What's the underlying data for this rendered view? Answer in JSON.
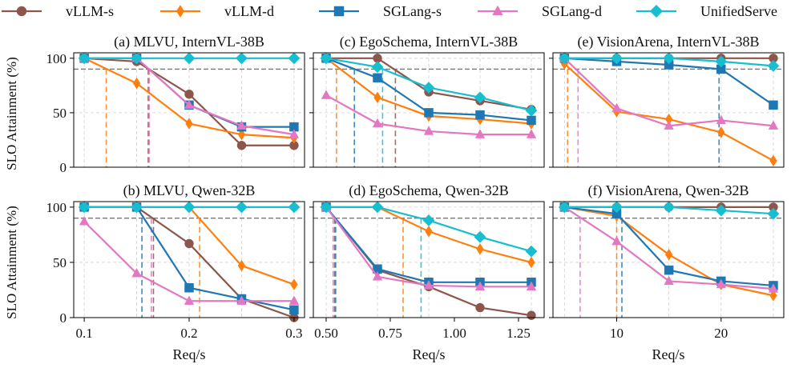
{
  "figure": {
    "ylabel": "SLO Attainment (%)",
    "xlabel": "Req/s",
    "target_line": 90
  },
  "legend": [
    {
      "name": "vLLM-s",
      "color": "#8c564b",
      "marker": "circle"
    },
    {
      "name": "vLLM-d",
      "color": "#ff7f0e",
      "marker": "diamond-thin"
    },
    {
      "name": "SGLang-s",
      "color": "#1f77b4",
      "marker": "square"
    },
    {
      "name": "SGLang-d",
      "color": "#e377c2",
      "marker": "triangle"
    },
    {
      "name": "UnifiedServe",
      "color": "#17becf",
      "marker": "diamond"
    }
  ],
  "chart_data": [
    {
      "type": "line",
      "title": "(a) MLVU, InternVL-38B",
      "xlabel": "",
      "ylabel": "SLO Attainment (%)",
      "xlim": [
        0.09,
        0.31
      ],
      "ylim": [
        0,
        105
      ],
      "xticks": [],
      "xtick_labels": [],
      "yticks": [
        0,
        50,
        100
      ],
      "x": [
        0.1,
        0.15,
        0.2,
        0.25,
        0.3
      ],
      "series": [
        {
          "name": "vLLM-s",
          "values": [
            100,
            97,
            67,
            20,
            20
          ]
        },
        {
          "name": "vLLM-d",
          "values": [
            100,
            77,
            40,
            30,
            27
          ]
        },
        {
          "name": "SGLang-s",
          "values": [
            100,
            100,
            57,
            37,
            37
          ]
        },
        {
          "name": "SGLang-d",
          "values": [
            100,
            100,
            57,
            38,
            30
          ]
        },
        {
          "name": "UnifiedServe",
          "values": [
            100,
            100,
            100,
            100,
            100
          ]
        }
      ],
      "vlines": [
        {
          "name": "vLLM-d",
          "x": 0.121
        },
        {
          "name": "vLLM-s",
          "x": 0.161
        },
        {
          "name": "SGLang-d",
          "x": 0.162
        }
      ]
    },
    {
      "type": "line",
      "title": "(c) EgoSchema, InternVL-38B",
      "xlabel": "",
      "ylabel": "",
      "xlim": [
        0.45,
        1.35
      ],
      "ylim": [
        0,
        105
      ],
      "xticks": [],
      "xtick_labels": [],
      "yticks": [
        0,
        50,
        100
      ],
      "x": [
        0.5,
        0.7,
        0.9,
        1.1,
        1.3
      ],
      "series": [
        {
          "name": "vLLM-s",
          "values": [
            100,
            100,
            69,
            61,
            53
          ]
        },
        {
          "name": "vLLM-d",
          "values": [
            100,
            64,
            47,
            44,
            40
          ]
        },
        {
          "name": "SGLang-s",
          "values": [
            100,
            82,
            50,
            48,
            43
          ]
        },
        {
          "name": "SGLang-d",
          "values": [
            66,
            40,
            33,
            30,
            30
          ]
        },
        {
          "name": "UnifiedServe",
          "values": [
            100,
            92,
            73,
            64,
            52
          ]
        }
      ],
      "vlines": [
        {
          "name": "vLLM-d",
          "x": 0.54
        },
        {
          "name": "SGLang-s",
          "x": 0.61
        },
        {
          "name": "UnifiedServe",
          "x": 0.72
        },
        {
          "name": "vLLM-s",
          "x": 0.77
        }
      ]
    },
    {
      "type": "line",
      "title": "(e) VisionArena, InternVL-38B",
      "xlabel": "",
      "ylabel": "",
      "xlim": [
        3.9,
        26
      ],
      "ylim": [
        0,
        105
      ],
      "xticks": [],
      "xtick_labels": [],
      "yticks": [
        0,
        50,
        100
      ],
      "x": [
        5,
        10,
        15,
        20,
        25
      ],
      "series": [
        {
          "name": "vLLM-s",
          "values": [
            100,
            100,
            100,
            100,
            100
          ]
        },
        {
          "name": "vLLM-d",
          "values": [
            95,
            51,
            44,
            32,
            6
          ]
        },
        {
          "name": "SGLang-s",
          "values": [
            100,
            97,
            94,
            90,
            57
          ]
        },
        {
          "name": "SGLang-d",
          "values": [
            100,
            54,
            38,
            43,
            38
          ]
        },
        {
          "name": "UnifiedServe",
          "values": [
            100,
            100,
            100,
            97,
            93
          ]
        }
      ],
      "vlines": [
        {
          "name": "vLLM-d",
          "x": 5.3
        },
        {
          "name": "SGLang-d",
          "x": 6.3
        },
        {
          "name": "SGLang-s",
          "x": 19.8
        }
      ]
    },
    {
      "type": "line",
      "title": "(b) MLVU, Qwen-32B",
      "xlabel": "Req/s",
      "ylabel": "SLO Attainment (%)",
      "xlim": [
        0.09,
        0.31
      ],
      "ylim": [
        0,
        105
      ],
      "xticks": [
        0.1,
        0.2,
        0.3
      ],
      "xtick_labels": [
        "0.1",
        "0.2",
        "0.3"
      ],
      "yticks": [
        0,
        50,
        100
      ],
      "x": [
        0.1,
        0.15,
        0.2,
        0.25,
        0.3
      ],
      "series": [
        {
          "name": "vLLM-s",
          "values": [
            100,
            100,
            67,
            17,
            0
          ]
        },
        {
          "name": "vLLM-d",
          "values": [
            100,
            100,
            100,
            47,
            30
          ]
        },
        {
          "name": "SGLang-s",
          "values": [
            100,
            100,
            27,
            17,
            7
          ]
        },
        {
          "name": "SGLang-d",
          "values": [
            87,
            40,
            15,
            15,
            15
          ]
        },
        {
          "name": "UnifiedServe",
          "values": [
            100,
            100,
            100,
            100,
            100
          ]
        }
      ],
      "vlines": [
        {
          "name": "SGLang-s",
          "x": 0.155
        },
        {
          "name": "SGLang-d",
          "x": 0.164
        },
        {
          "name": "vLLM-s",
          "x": 0.166
        },
        {
          "name": "vLLM-d",
          "x": 0.21
        }
      ]
    },
    {
      "type": "line",
      "title": "(d) EgoSchema, Qwen-32B",
      "xlabel": "Req/s",
      "ylabel": "",
      "xlim": [
        0.45,
        1.35
      ],
      "ylim": [
        0,
        105
      ],
      "xticks": [
        0.5,
        0.75,
        1.0,
        1.25
      ],
      "xtick_labels": [
        "0.50",
        "0.75",
        "1.00",
        "1.25"
      ],
      "yticks": [
        0,
        50,
        100
      ],
      "x": [
        0.5,
        0.7,
        0.9,
        1.1,
        1.3
      ],
      "series": [
        {
          "name": "vLLM-s",
          "values": [
            100,
            43,
            28,
            9,
            2
          ]
        },
        {
          "name": "vLLM-d",
          "values": [
            100,
            100,
            78,
            62,
            50
          ]
        },
        {
          "name": "SGLang-s",
          "values": [
            100,
            44,
            32,
            32,
            32
          ]
        },
        {
          "name": "SGLang-d",
          "values": [
            100,
            37,
            29,
            28,
            28
          ]
        },
        {
          "name": "UnifiedServe",
          "values": [
            100,
            100,
            88,
            73,
            60
          ]
        }
      ],
      "vlines": [
        {
          "name": "SGLang-d",
          "x": 0.527
        },
        {
          "name": "vLLM-s",
          "x": 0.533
        },
        {
          "name": "SGLang-s",
          "x": 0.537
        },
        {
          "name": "vLLM-d",
          "x": 0.8
        },
        {
          "name": "UnifiedServe",
          "x": 0.87
        }
      ]
    },
    {
      "type": "line",
      "title": "(f) VisionArena, Qwen-32B",
      "xlabel": "Req/s",
      "ylabel": "",
      "xlim": [
        3.9,
        26
      ],
      "ylim": [
        0,
        105
      ],
      "xticks": [
        10,
        20
      ],
      "xtick_labels": [
        "10",
        "20"
      ],
      "yticks": [
        0,
        50,
        100
      ],
      "x": [
        5,
        10,
        15,
        20,
        25
      ],
      "series": [
        {
          "name": "vLLM-s",
          "values": [
            100,
            100,
            100,
            100,
            100
          ]
        },
        {
          "name": "vLLM-d",
          "values": [
            100,
            92,
            57,
            30,
            20
          ]
        },
        {
          "name": "SGLang-s",
          "values": [
            100,
            94,
            43,
            33,
            29
          ]
        },
        {
          "name": "SGLang-d",
          "values": [
            100,
            69,
            33,
            30,
            26
          ]
        },
        {
          "name": "UnifiedServe",
          "values": [
            100,
            100,
            100,
            97,
            94
          ]
        }
      ],
      "vlines": [
        {
          "name": "SGLang-d",
          "x": 6.5
        },
        {
          "name": "vLLM-d",
          "x": 10.0
        },
        {
          "name": "SGLang-s",
          "x": 10.5
        }
      ]
    }
  ]
}
